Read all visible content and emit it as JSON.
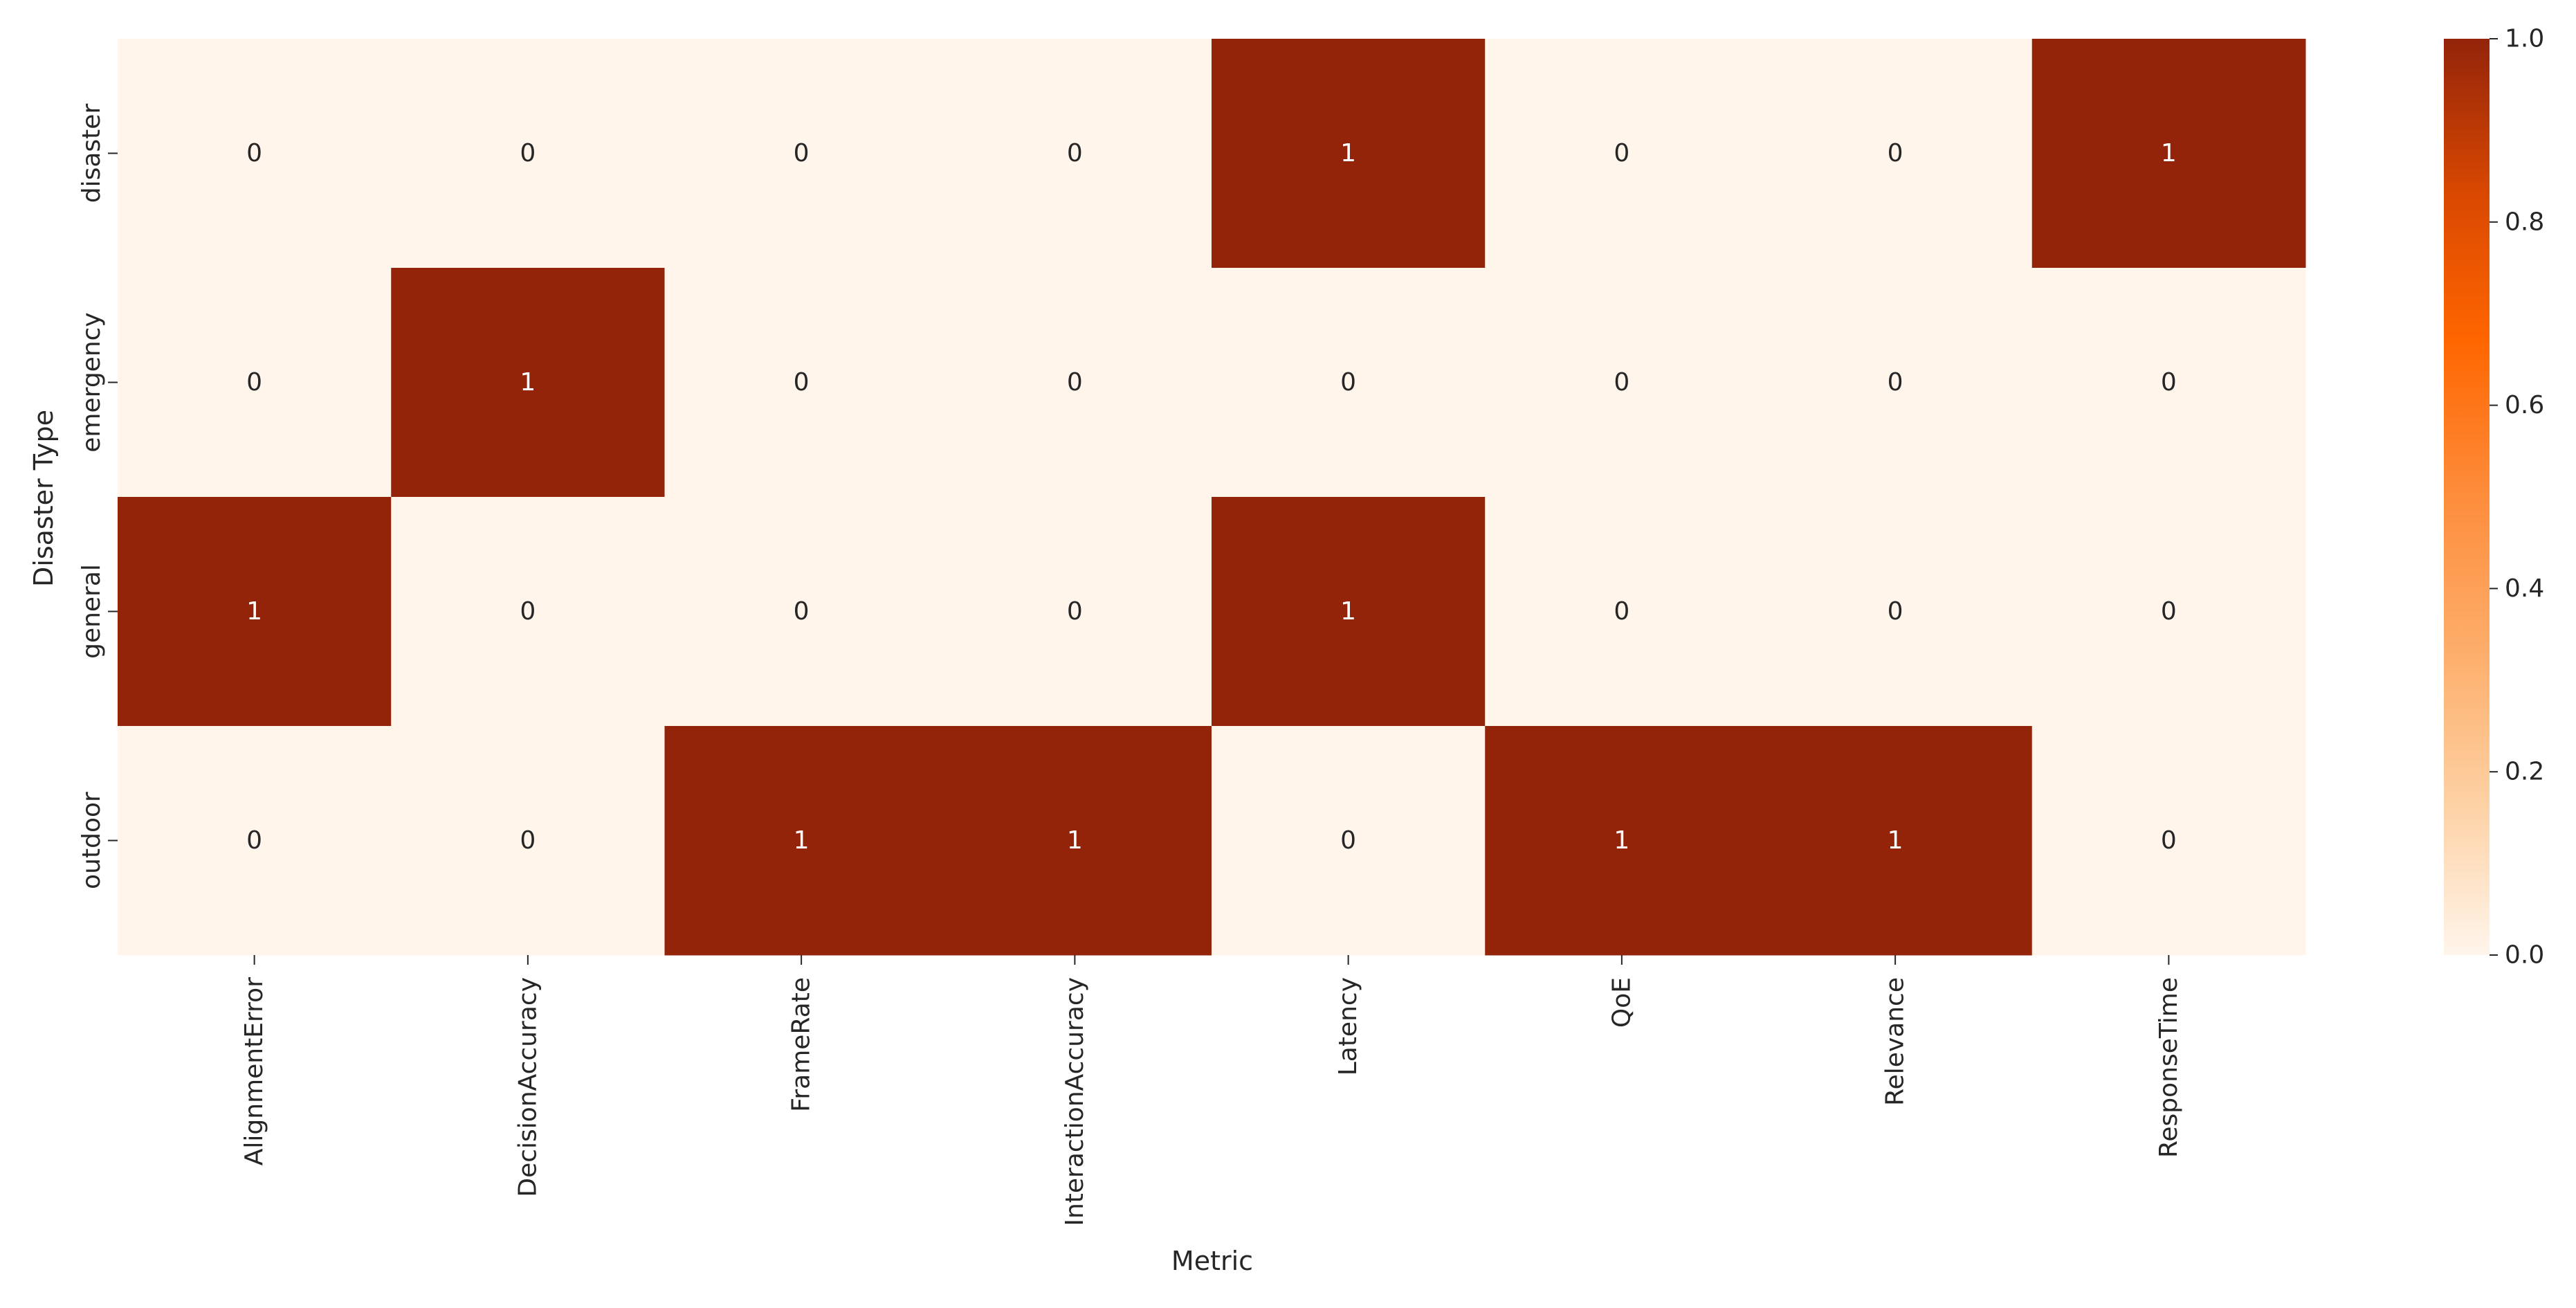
{
  "chart_data": {
    "type": "heatmap",
    "title": "",
    "xlabel": "Metric",
    "ylabel": "Disaster Type",
    "x_categories": [
      "AlignmentError",
      "DecisionAccuracy",
      "FrameRate",
      "InteractionAccuracy",
      "Latency",
      "QoE",
      "Relevance",
      "ResponseTime"
    ],
    "y_categories": [
      "disaster",
      "emergency",
      "general",
      "outdoor"
    ],
    "values": [
      [
        0,
        0,
        0,
        0,
        1,
        0,
        0,
        1
      ],
      [
        0,
        1,
        0,
        0,
        0,
        0,
        0,
        0
      ],
      [
        1,
        0,
        0,
        0,
        1,
        0,
        0,
        0
      ],
      [
        0,
        0,
        1,
        1,
        0,
        1,
        1,
        0
      ]
    ],
    "annotate": true,
    "colorbar": {
      "min": 0.0,
      "max": 1.0,
      "ticks": [
        "0.0",
        "0.2",
        "0.4",
        "0.6",
        "0.8",
        "1.0"
      ],
      "colormap": "Oranges-like",
      "stops": [
        "#fff5eb",
        "#fdd0a2",
        "#fdae6b",
        "#fd8d3c",
        "#ff6600",
        "#d94801",
        "#93240a"
      ]
    },
    "colors": {
      "low": "#fff5eb",
      "high": "#93240a",
      "text_on_low": "#262626",
      "text_on_high": "#ffffff"
    }
  }
}
